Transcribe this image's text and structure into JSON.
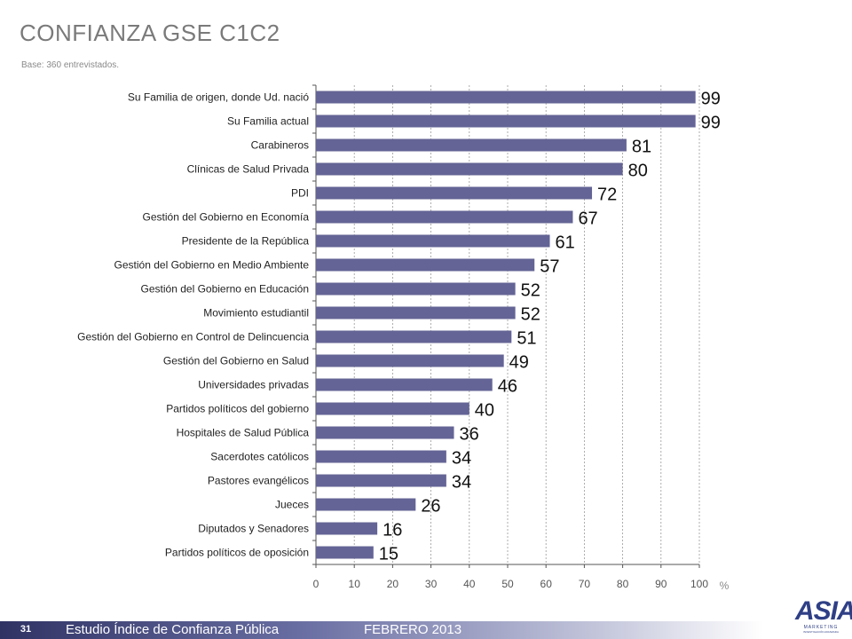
{
  "page": {
    "title": "CONFIANZA GSE C1C2",
    "subtitle": "Base:  360 entrevistados."
  },
  "chart_data": {
    "type": "bar",
    "orientation": "horizontal",
    "title": "CONFIANZA GSE C1C2",
    "unit_label": "%",
    "categories": [
      "Su Familia de origen, donde Ud. nació",
      "Su Familia actual",
      "Carabineros",
      "Clínicas de Salud Privada",
      "PDI",
      "Gestión del Gobierno en Economía",
      "Presidente de la República",
      "Gestión del Gobierno en Medio Ambiente",
      "Gestión del Gobierno en Educación",
      "Movimiento estudiantil",
      "Gestión del Gobierno en Control de Delincuencia",
      "Gestión del Gobierno en Salud",
      "Universidades privadas",
      "Partidos políticos del gobierno",
      "Hospitales de Salud Pública",
      "Sacerdotes católicos",
      "Pastores evangélicos",
      "Jueces",
      "Diputados y Senadores",
      "Partidos políticos de oposición"
    ],
    "values": [
      99,
      99,
      81,
      80,
      72,
      67,
      61,
      57,
      52,
      52,
      51,
      49,
      46,
      40,
      36,
      34,
      34,
      26,
      16,
      15
    ],
    "xlim": [
      0,
      100
    ],
    "xticks": [
      0,
      10,
      20,
      30,
      40,
      50,
      60,
      70,
      80,
      90,
      100
    ],
    "grid": "vertical-dashed",
    "bar_color": "#646496"
  },
  "footer": {
    "page_number": "31",
    "study": "Estudio  Índice de Confianza Pública",
    "date": "FEBRERO 2013",
    "logo_text": "ASIA",
    "logo_sub": "MARKETING",
    "logo_sub2": "INVESTIGACIÓN AVANZADA"
  }
}
